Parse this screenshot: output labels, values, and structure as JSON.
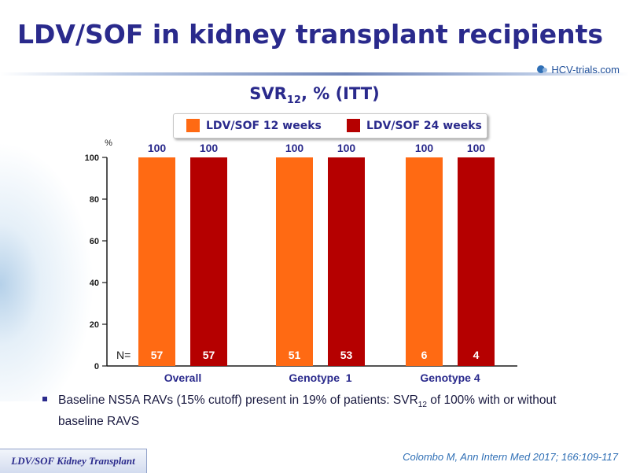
{
  "slide": {
    "title": "LDV/SOF in kidney transplant recipients",
    "brand": "HCV-trials.com",
    "subtitle_main": "SVR",
    "subtitle_sub": "12",
    "subtitle_tail": ", % (ITT)",
    "bullet_part1": "Baseline NS5A RAVs (15% cutoff) present in 19% of patients: SVR",
    "bullet_sub": "12",
    "bullet_part2": " of 100% with or without baseline RAVS",
    "footer_tag": "LDV/SOF Kidney Transplant",
    "citation": "Colombo M, Ann Intern Med 2017; 166:109-117"
  },
  "legend": [
    {
      "label": "LDV/SOF 12 weeks",
      "color": "#ff6a13"
    },
    {
      "label": "LDV/SOF 24 weeks",
      "color": "#b50000"
    }
  ],
  "chart_data": {
    "type": "bar",
    "ylabel": "%",
    "ylim": [
      0,
      100
    ],
    "yticks": [
      0,
      20,
      40,
      60,
      80,
      100
    ],
    "categories": [
      "Overall",
      "Genotype  1",
      "Genotype 4"
    ],
    "series": [
      {
        "name": "LDV/SOF 12 weeks",
        "color": "#ff6a13",
        "values": [
          100,
          100,
          100
        ],
        "n": [
          57,
          51,
          6
        ]
      },
      {
        "name": "LDV/SOF 24 weeks",
        "color": "#b50000",
        "values": [
          100,
          100,
          100
        ],
        "n": [
          57,
          53,
          4
        ]
      }
    ],
    "n_prefix": "N=",
    "grid": false,
    "legend_position": "top"
  }
}
